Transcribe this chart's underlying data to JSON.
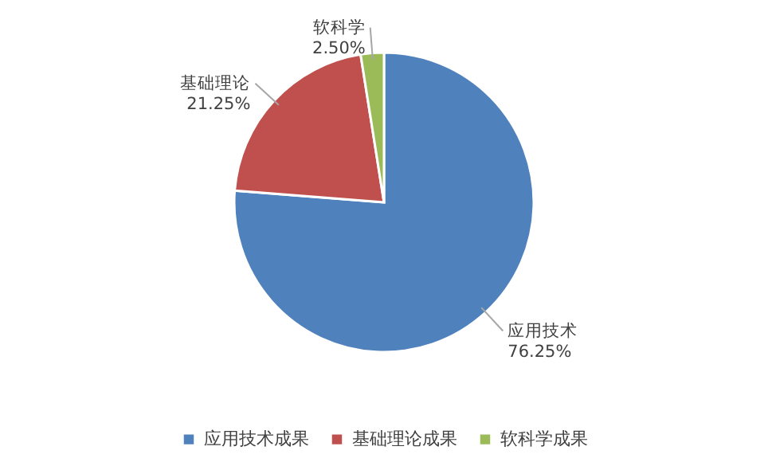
{
  "chart_data": {
    "type": "pie",
    "categories": [
      "应用技术成果",
      "基础理论成果",
      "软科学成果"
    ],
    "values": [
      76.25,
      21.25,
      2.5
    ],
    "colors": [
      "#4f81bd",
      "#c0504d",
      "#9bbb59"
    ],
    "value_labels": [
      "应用技术\n76.25%",
      "基础理论\n21.25%",
      "软科学\n2.50%"
    ],
    "legend": "bottom"
  }
}
